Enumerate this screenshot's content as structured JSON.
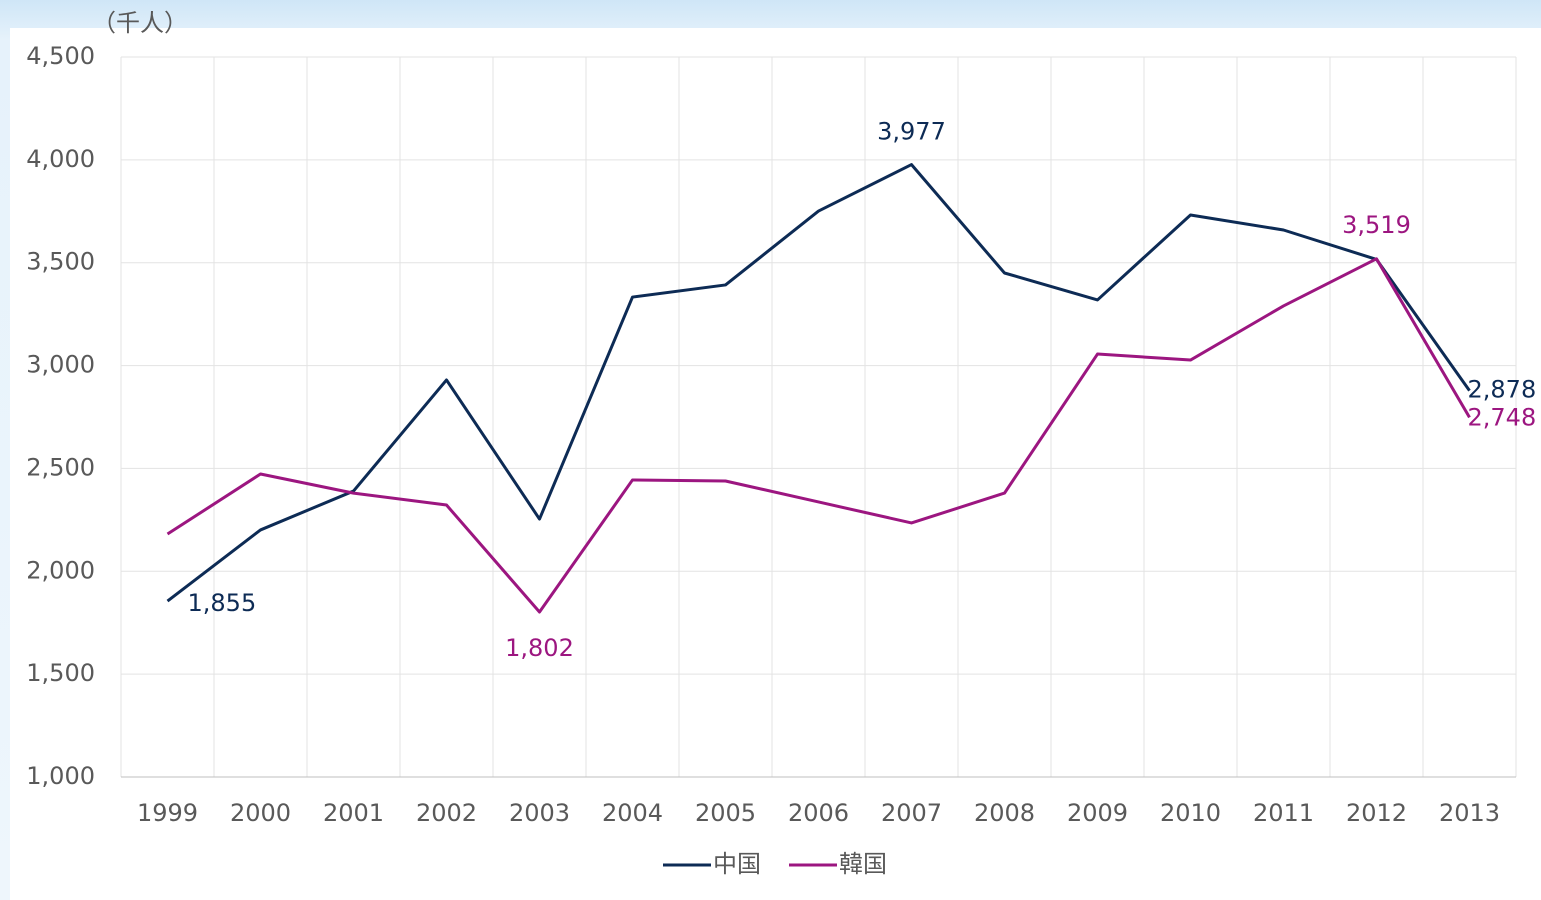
{
  "chart_data": {
    "type": "line",
    "annotations": [
      "（千人）"
    ],
    "categories": [
      "1999",
      "2000",
      "2001",
      "2002",
      "2003",
      "2004",
      "2005",
      "2006",
      "2007",
      "2008",
      "2009",
      "2010",
      "2011",
      "2012",
      "2013"
    ],
    "series": [
      {
        "name": "中国",
        "color": "#0d2b55",
        "values": [
          1855,
          2201,
          2390,
          2930,
          2254,
          3333,
          3392,
          3751,
          3977,
          3450,
          3319,
          3732,
          3659,
          3516,
          2878
        ],
        "value_labels": [
          "1,855",
          null,
          null,
          null,
          null,
          null,
          null,
          null,
          "3,977",
          null,
          null,
          null,
          null,
          null,
          "2,878"
        ]
      },
      {
        "name": "韓国",
        "color": "#9c1680",
        "values": [
          2181,
          2473,
          2380,
          2322,
          1802,
          2444,
          2439,
          2337,
          2235,
          2380,
          3056,
          3027,
          3290,
          3519,
          2748
        ],
        "value_labels": [
          null,
          null,
          null,
          null,
          "1,802",
          null,
          null,
          null,
          null,
          null,
          null,
          null,
          null,
          "3,519",
          "2,748"
        ]
      }
    ],
    "ylim": [
      1000,
      4500
    ],
    "yticks": [
      {
        "value": 1000,
        "label": "1,000"
      },
      {
        "value": 1500,
        "label": "1,500"
      },
      {
        "value": 2000,
        "label": "2,000"
      },
      {
        "value": 2500,
        "label": "2,500"
      },
      {
        "value": 3000,
        "label": "3,000"
      },
      {
        "value": 3500,
        "label": "3,500"
      },
      {
        "value": 4000,
        "label": "4,000"
      },
      {
        "value": 4500,
        "label": "4,500"
      }
    ],
    "grid": true,
    "legend": "bottom"
  }
}
